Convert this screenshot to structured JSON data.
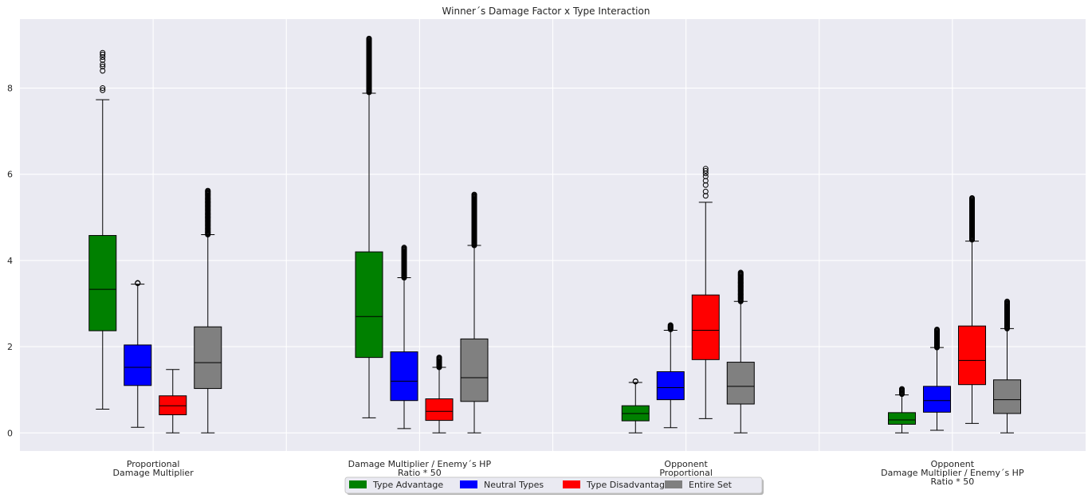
{
  "chart_data": {
    "type": "box",
    "title": "Winner´s Damage Factor x Type Interaction",
    "xlabel": "",
    "ylabel": "",
    "ylim": [
      -0.42,
      9.6
    ],
    "yticks": [
      0,
      2,
      4,
      6,
      8
    ],
    "grid": true,
    "legend_position": "bottom-center",
    "categories": [
      [
        "Proportional",
        "Damage Multiplier"
      ],
      [
        "Damage Multiplier / Enemy´s HP",
        "Ratio * 50"
      ],
      [
        "Opponent",
        "Proportional"
      ],
      [
        "Opponent",
        "Damage Multiplier / Enemy´s HP",
        "Ratio * 50"
      ]
    ],
    "series": [
      {
        "name": "Type Advantage",
        "color": "#008000",
        "boxes": [
          {
            "whislo": 0.55,
            "q1": 2.37,
            "med": 3.33,
            "q3": 4.58,
            "whishi": 7.73,
            "fliers": [
              7.95,
              8.0,
              8.4,
              8.5,
              8.55,
              8.65,
              8.72,
              8.78,
              8.82
            ]
          },
          {
            "whislo": 0.35,
            "q1": 1.75,
            "med": 2.7,
            "q3": 4.2,
            "whishi": 7.88,
            "fliers_range": [
              7.9,
              9.15
            ]
          },
          {
            "whislo": 0.0,
            "q1": 0.28,
            "med": 0.45,
            "q3": 0.63,
            "whishi": 1.17,
            "fliers": [
              1.19,
              1.2
            ]
          },
          {
            "whislo": 0.0,
            "q1": 0.2,
            "med": 0.3,
            "q3": 0.47,
            "whishi": 0.88,
            "fliers_range": [
              0.9,
              1.02
            ]
          }
        ]
      },
      {
        "name": "Neutral Types",
        "color": "#0000ff",
        "boxes": [
          {
            "whislo": 0.13,
            "q1": 1.1,
            "med": 1.52,
            "q3": 2.04,
            "whishi": 3.45,
            "fliers": [
              3.47,
              3.48
            ]
          },
          {
            "whislo": 0.1,
            "q1": 0.75,
            "med": 1.2,
            "q3": 1.88,
            "whishi": 3.6,
            "fliers_range": [
              3.6,
              4.3
            ]
          },
          {
            "whislo": 0.12,
            "q1": 0.77,
            "med": 1.05,
            "q3": 1.42,
            "whishi": 2.38,
            "fliers_range": [
              2.4,
              2.5
            ]
          },
          {
            "whislo": 0.06,
            "q1": 0.48,
            "med": 0.75,
            "q3": 1.08,
            "whishi": 1.98,
            "fliers_range": [
              1.98,
              2.4
            ]
          }
        ]
      },
      {
        "name": "Type Disadvantage",
        "color": "#ff0000",
        "boxes": [
          {
            "whislo": 0.0,
            "q1": 0.42,
            "med": 0.63,
            "q3": 0.86,
            "whishi": 1.47,
            "fliers": []
          },
          {
            "whislo": 0.0,
            "q1": 0.29,
            "med": 0.5,
            "q3": 0.79,
            "whishi": 1.52,
            "fliers_range": [
              1.52,
              1.75
            ]
          },
          {
            "whislo": 0.33,
            "q1": 1.7,
            "med": 2.38,
            "q3": 3.2,
            "whishi": 5.35,
            "fliers": [
              5.5,
              5.6,
              5.75,
              5.85,
              5.95,
              6.02,
              6.08,
              6.13
            ]
          },
          {
            "whislo": 0.22,
            "q1": 1.12,
            "med": 1.68,
            "q3": 2.48,
            "whishi": 4.45,
            "fliers_range": [
              4.48,
              5.45
            ]
          }
        ]
      },
      {
        "name": "Entire Set",
        "color": "#808080",
        "boxes": [
          {
            "whislo": 0.0,
            "q1": 1.03,
            "med": 1.63,
            "q3": 2.46,
            "whishi": 4.6,
            "fliers_range": [
              4.6,
              5.62
            ]
          },
          {
            "whislo": 0.0,
            "q1": 0.73,
            "med": 1.28,
            "q3": 2.18,
            "whishi": 4.35,
            "fliers_range": [
              4.35,
              5.53
            ]
          },
          {
            "whislo": 0.0,
            "q1": 0.67,
            "med": 1.08,
            "q3": 1.64,
            "whishi": 3.05,
            "fliers_range": [
              3.05,
              3.72
            ]
          },
          {
            "whislo": 0.0,
            "q1": 0.45,
            "med": 0.77,
            "q3": 1.23,
            "whishi": 2.42,
            "fliers_range": [
              2.42,
              3.05
            ]
          }
        ]
      }
    ]
  }
}
